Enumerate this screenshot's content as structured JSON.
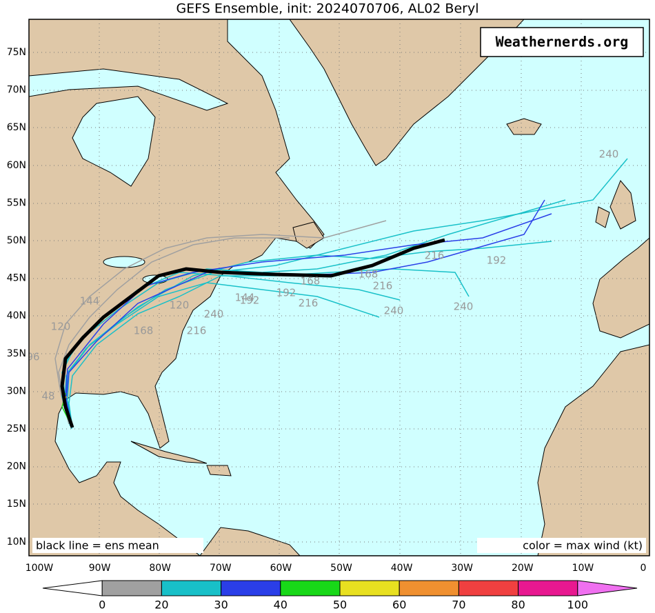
{
  "header": {
    "title": "GEFS Ensemble, init: 2024070706, AL02 Beryl"
  },
  "watermark": "Weathernerds.org",
  "map": {
    "lat_labels": [
      "75N",
      "70N",
      "65N",
      "60N",
      "55N",
      "50N",
      "45N",
      "40N",
      "35N",
      "30N",
      "25N",
      "20N",
      "15N",
      "10N"
    ],
    "lon_labels": [
      "100W",
      "90W",
      "80W",
      "70W",
      "60W",
      "50W",
      "40W",
      "30W",
      "20W",
      "10W",
      "0"
    ],
    "notes": [
      "black line = ens mean",
      "color = max wind (kt)"
    ],
    "track_labels": [
      "240",
      "216",
      "192",
      "168",
      "216",
      "192",
      "216",
      "240",
      "240",
      "144",
      "192",
      "240",
      "216",
      "120",
      "144",
      "120",
      "168",
      "96",
      "48",
      "168"
    ]
  },
  "colorbar": {
    "labels": [
      "0",
      "20",
      "30",
      "40",
      "50",
      "60",
      "70",
      "80",
      "100"
    ],
    "colors": [
      "#ffffff",
      "#a0a0a0",
      "#18c0c8",
      "#2a3ee8",
      "#18d818",
      "#e8e020",
      "#f09030",
      "#f04040",
      "#e81890",
      "#f070f0"
    ]
  }
}
